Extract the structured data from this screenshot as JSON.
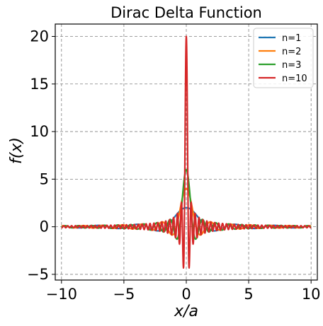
{
  "chart_data": {
    "type": "line",
    "title": "Dirac Delta Function",
    "xlabel": "x/a",
    "ylabel": "f(x)",
    "xlim": [
      -10.5,
      10.5
    ],
    "ylim": [
      -5.6,
      21.3
    ],
    "xticks": [
      -10,
      -5,
      0,
      5,
      10
    ],
    "xtick_labels": [
      "−10",
      "−5",
      "0",
      "5",
      "10"
    ],
    "yticks": [
      -5,
      0,
      5,
      10,
      15,
      20
    ],
    "ytick_labels": [
      "−5",
      "0",
      "5",
      "10",
      "15",
      "20"
    ],
    "grid": true,
    "legend_position": "top-right",
    "function": "f(x) = sin(2*n*x)/(pi*x)*pi, sampled on x in [-10, 10]",
    "series": [
      {
        "name": "n=1",
        "n": 1,
        "color": "#1f77b4",
        "peak": 2
      },
      {
        "name": "n=2",
        "n": 2,
        "color": "#ff7f0e",
        "peak": 4
      },
      {
        "name": "n=3",
        "n": 3,
        "color": "#2ca02c",
        "peak": 6
      },
      {
        "name": "n=10",
        "n": 10,
        "color": "#d62728",
        "peak": 20
      }
    ]
  }
}
